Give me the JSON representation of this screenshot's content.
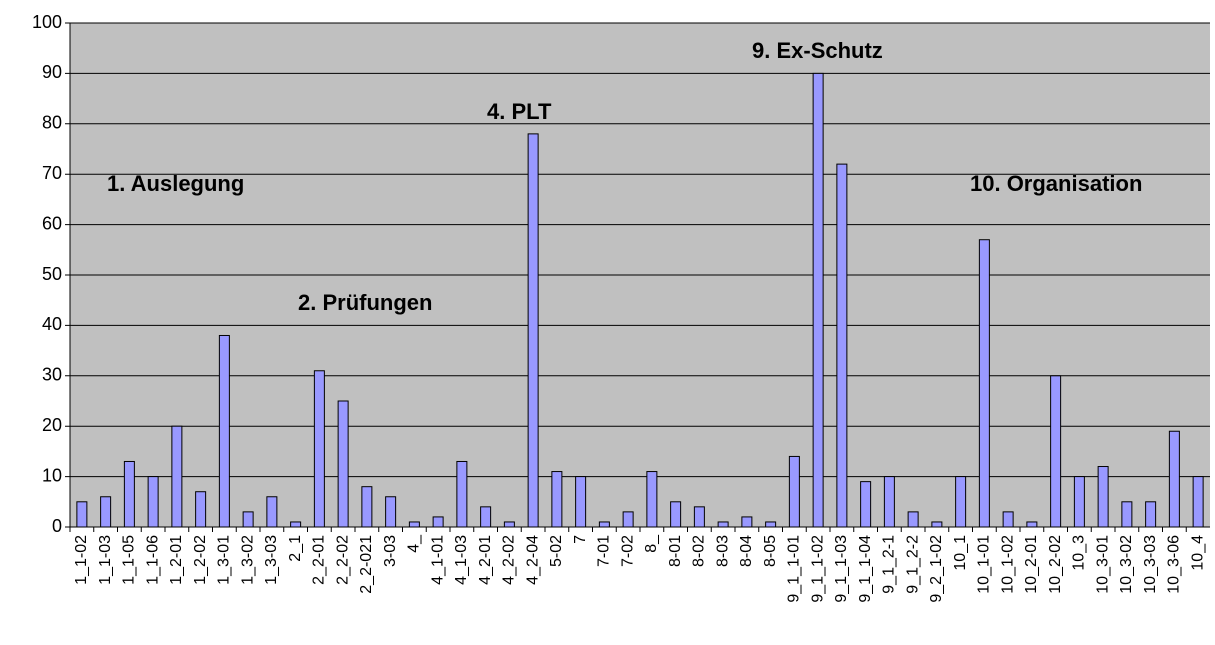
{
  "chart_data": {
    "type": "bar",
    "categories": [
      "1_1-02",
      "1_1-03",
      "1_1-05",
      "1_1-06",
      "1_2-01",
      "1_2-02",
      "1_3-01",
      "1_3-02",
      "1_3-03",
      "2_1",
      "2_2-01",
      "2_2-02",
      "2_2-021",
      "3-03",
      "4_",
      "4_1-01",
      "4_1-03",
      "4_2-01",
      "4_2-02",
      "4_2-04",
      "5-02",
      "7",
      "7-01",
      "7-02",
      "8_",
      "8-01",
      "8-02",
      "8-03",
      "8-04",
      "8-05",
      "9_1_1-01",
      "9_1_1-02",
      "9_1_1-03",
      "9_1_1-04",
      "9_1_2-1",
      "9_1_2-2",
      "9_2_1-02",
      "10_1",
      "10_1-01",
      "10_1-02",
      "10_2-01",
      "10_2-02",
      "10_3",
      "10_3-01",
      "10_3-02",
      "10_3-03",
      "10_3-06",
      "10_4"
    ],
    "values": [
      5,
      6,
      13,
      10,
      20,
      7,
      38,
      3,
      6,
      1,
      31,
      25,
      8,
      6,
      1,
      2,
      13,
      4,
      1,
      78,
      11,
      10,
      1,
      3,
      11,
      5,
      4,
      1,
      2,
      1,
      14,
      90,
      72,
      9,
      10,
      3,
      1,
      10,
      57,
      3,
      1,
      30,
      10,
      12,
      5,
      5,
      19,
      10
    ],
    "color": "#9999ff",
    "ylim": [
      0,
      100
    ],
    "yticks": [
      0,
      10,
      20,
      30,
      40,
      50,
      60,
      70,
      80,
      90,
      100
    ],
    "grid": true,
    "annotations": [
      "1. Auslegung",
      "2. Prüfungen",
      "4. PLT",
      "9. Ex-Schutz",
      "10. Organisation"
    ]
  }
}
